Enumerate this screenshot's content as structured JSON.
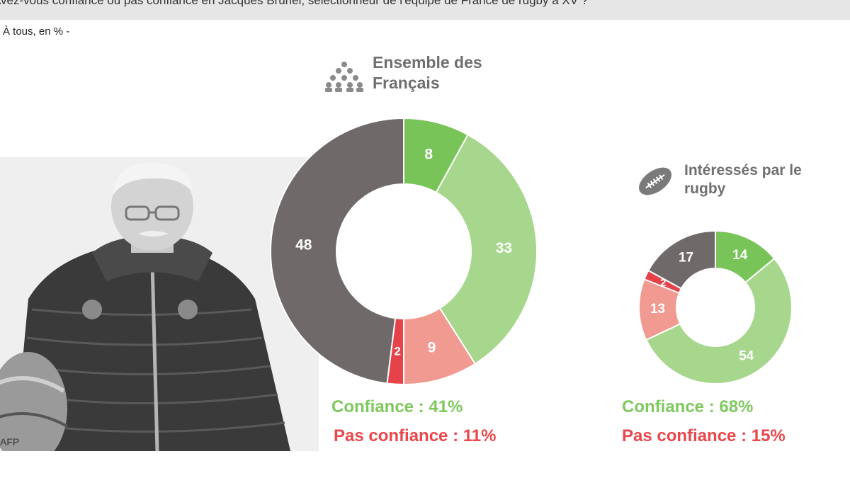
{
  "header": {
    "question": "Avez-vous confiance ou pas confiance en Jacques Brunel, sélectionneur de l'équipe de France de rugby à XV ?",
    "subtitle": "À tous, en % -"
  },
  "photo": {
    "credit": "AFP"
  },
  "icons": {
    "group": "people-group-icon",
    "rugby": "rugby-ball-icon"
  },
  "colors": {
    "tout_confiance": "#78c459",
    "plutot_confiance": "#a7d68d",
    "plutot_pas": "#f19a91",
    "pas_du_tout": "#e5424a",
    "nsp": "#6f6a69",
    "label_green": "#7ec95e",
    "label_red": "#e8484c"
  },
  "chart_data": [
    {
      "type": "pie",
      "title": "Ensemble des Français",
      "values": [
        8,
        33,
        9,
        2,
        48
      ],
      "colors": [
        "#78c459",
        "#a7d68d",
        "#f19a91",
        "#e5424a",
        "#6f6a69"
      ],
      "summary": {
        "confiance": "Confiance : 41%",
        "pas_confiance": "Pas confiance : 11%"
      }
    },
    {
      "type": "pie",
      "title": "Intéressés par le rugby",
      "values": [
        14,
        54,
        13,
        2,
        17
      ],
      "colors": [
        "#78c459",
        "#a7d68d",
        "#f19a91",
        "#e5424a",
        "#6f6a69"
      ],
      "summary": {
        "confiance": "Confiance : 68%",
        "pas_confiance": "Pas confiance : 15%"
      }
    }
  ]
}
